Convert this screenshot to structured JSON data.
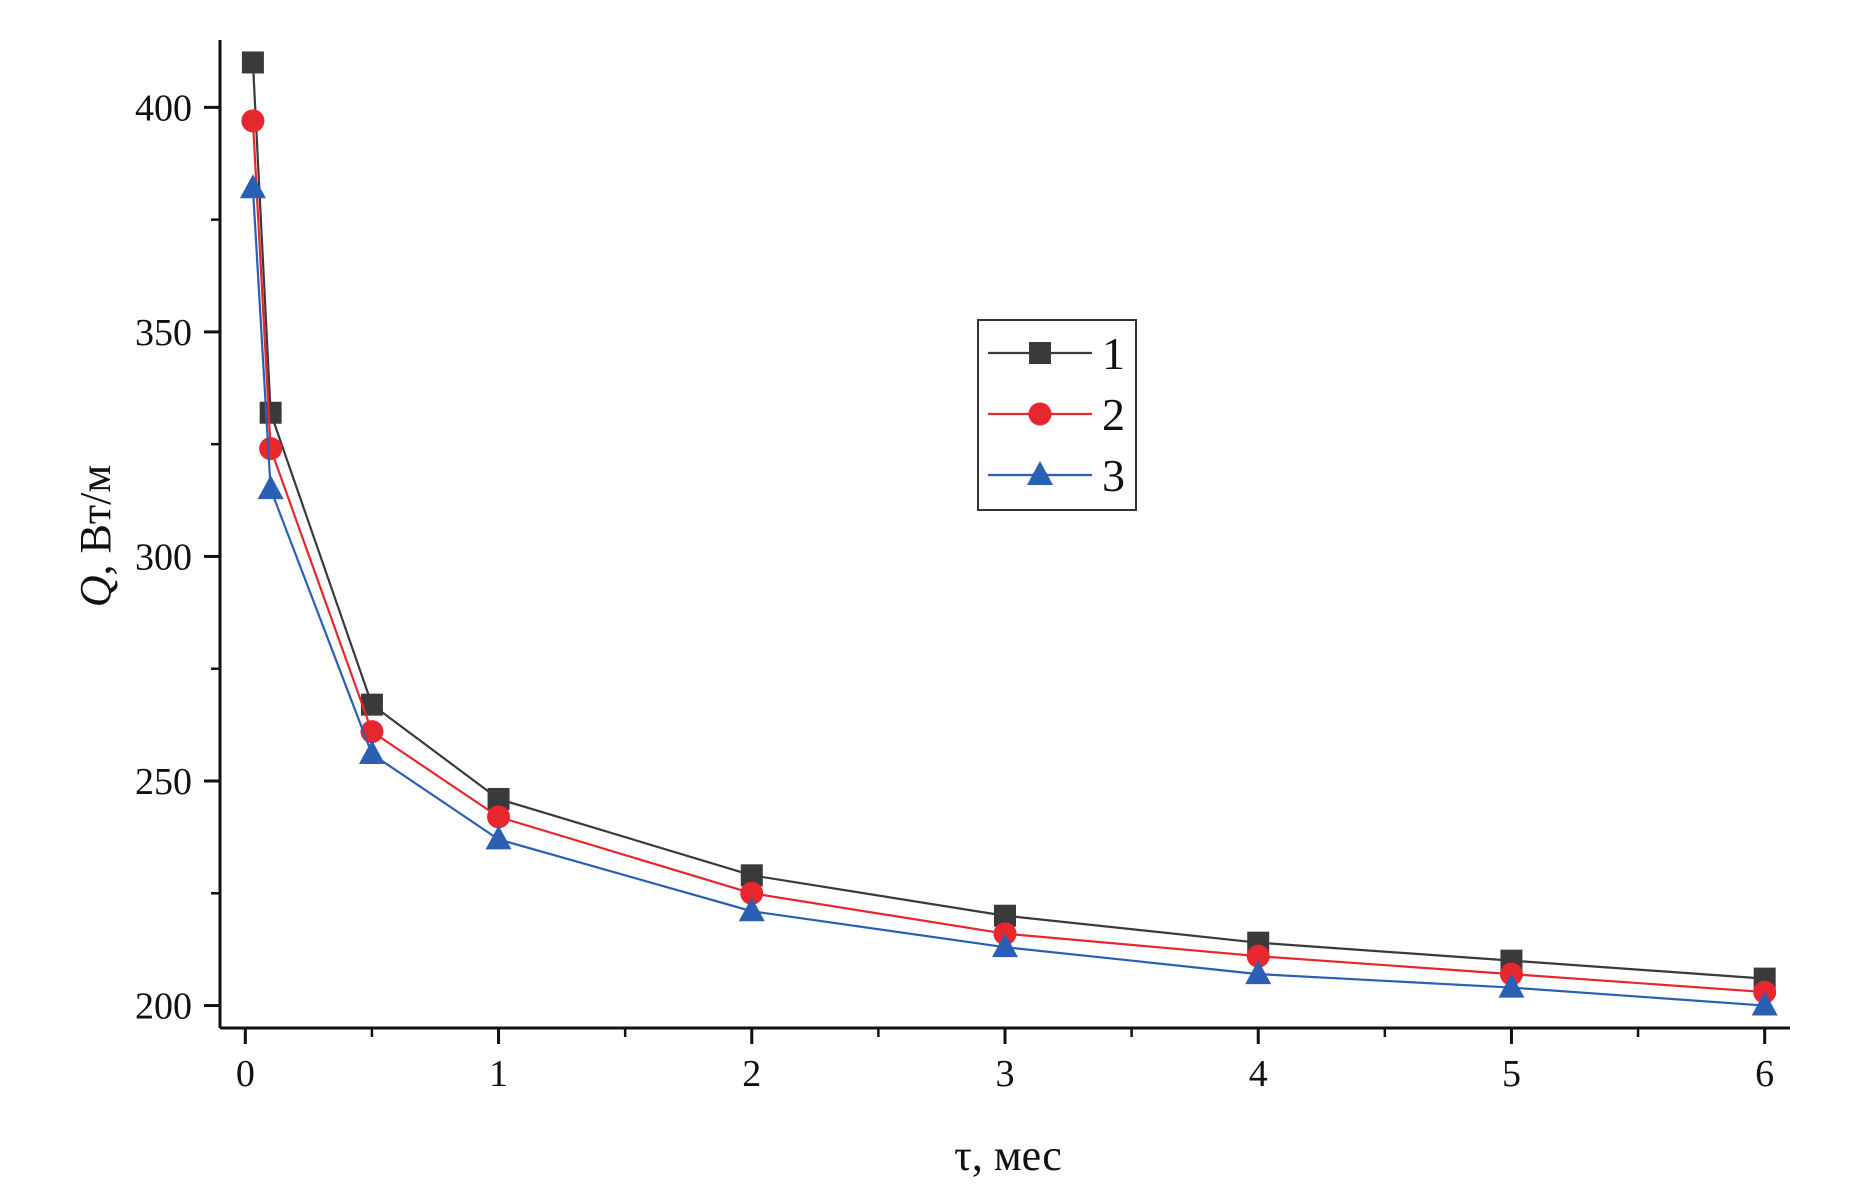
{
  "chart_data": {
    "type": "line",
    "title": "",
    "xlabel": "τ, мес",
    "ylabel_italic": "Q",
    "ylabel_rest": ", Вт/м",
    "xlim": [
      -0.1,
      6.1
    ],
    "ylim": [
      195,
      415
    ],
    "x_ticks": [
      0,
      1,
      2,
      3,
      4,
      5,
      6
    ],
    "y_ticks": [
      200,
      250,
      300,
      350,
      400
    ],
    "x_minor_ticks": [
      0.5,
      1.5,
      2.5,
      3.5,
      4.5,
      5.5
    ],
    "y_minor_ticks": [
      225,
      275,
      325,
      375
    ],
    "grid": false,
    "legend_position": "upper-center",
    "x": [
      0.03,
      0.1,
      0.5,
      1,
      2,
      3,
      4,
      5,
      6
    ],
    "series": [
      {
        "name": "1",
        "color": "#3a3a3a",
        "marker": "square",
        "values": [
          410,
          332,
          267,
          246,
          229,
          220,
          214,
          210,
          206
        ]
      },
      {
        "name": "2",
        "color": "#e8262e",
        "marker": "circle",
        "values": [
          397,
          324,
          261,
          242,
          225,
          216,
          211,
          207,
          203
        ]
      },
      {
        "name": "3",
        "color": "#2a5fb4",
        "marker": "triangle",
        "values": [
          382,
          315,
          256,
          237,
          221,
          213,
          207,
          204,
          200
        ]
      }
    ]
  }
}
